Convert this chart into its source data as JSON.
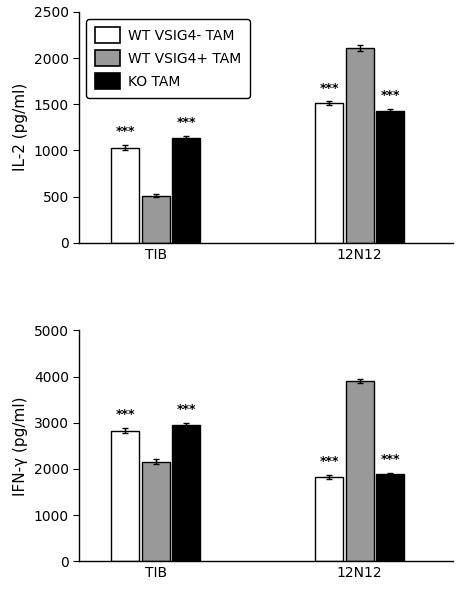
{
  "top_chart": {
    "ylabel": "IL-2 (pg/ml)",
    "ylim": [
      0,
      2500
    ],
    "yticks": [
      0,
      500,
      1000,
      1500,
      2000,
      2500
    ],
    "groups": [
      "TIB",
      "12N12"
    ],
    "bar_keys": [
      "WT VSIG4- TAM",
      "WT VSIG4+ TAM",
      "KO TAM"
    ],
    "bars": {
      "WT VSIG4- TAM": {
        "values": [
          1030,
          1510
        ],
        "color": "#ffffff",
        "edgecolor": "#000000"
      },
      "WT VSIG4+ TAM": {
        "values": [
          510,
          2110
        ],
        "color": "#999999",
        "edgecolor": "#000000"
      },
      "KO TAM": {
        "values": [
          1130,
          1430
        ],
        "color": "#000000",
        "edgecolor": "#000000"
      }
    },
    "errors": {
      "WT VSIG4- TAM": [
        25,
        20
      ],
      "WT VSIG4+ TAM": [
        15,
        28
      ],
      "KO TAM": [
        22,
        22
      ]
    },
    "stars": {
      "TIB": {
        "WT VSIG4- TAM": "***",
        "WT VSIG4+ TAM": null,
        "KO TAM": "***"
      },
      "12N12": {
        "WT VSIG4- TAM": "***",
        "WT VSIG4+ TAM": null,
        "KO TAM": "***"
      }
    }
  },
  "bottom_chart": {
    "ylabel": "IFN-γ (pg/ml)",
    "ylim": [
      0,
      5000
    ],
    "yticks": [
      0,
      1000,
      2000,
      3000,
      4000,
      5000
    ],
    "groups": [
      "TIB",
      "12N12"
    ],
    "bar_keys": [
      "WT VSIG4- TAM",
      "WT VSIG4+ TAM",
      "KO TAM"
    ],
    "bars": {
      "WT VSIG4- TAM": {
        "values": [
          2830,
          1820
        ],
        "color": "#ffffff",
        "edgecolor": "#000000"
      },
      "WT VSIG4+ TAM": {
        "values": [
          2150,
          3900
        ],
        "color": "#999999",
        "edgecolor": "#000000"
      },
      "KO TAM": {
        "values": [
          2940,
          1880
        ],
        "color": "#000000",
        "edgecolor": "#000000"
      }
    },
    "errors": {
      "WT VSIG4- TAM": [
        55,
        45
      ],
      "WT VSIG4+ TAM": [
        55,
        50
      ],
      "KO TAM": [
        45,
        40
      ]
    },
    "stars": {
      "TIB": {
        "WT VSIG4- TAM": "***",
        "WT VSIG4+ TAM": null,
        "KO TAM": "***"
      },
      "12N12": {
        "WT VSIG4- TAM": "***",
        "WT VSIG4+ TAM": null,
        "KO TAM": "***"
      }
    }
  },
  "legend": {
    "labels": [
      "WT VSIG4- TAM",
      "WT VSIG4+ TAM",
      "KO TAM"
    ],
    "colors": [
      "#ffffff",
      "#999999",
      "#000000"
    ],
    "edgecolors": [
      "#000000",
      "#000000",
      "#000000"
    ]
  },
  "bar_width": 0.18,
  "group_centers": [
    1.0,
    2.2
  ],
  "xlim": [
    0.55,
    2.75
  ],
  "fontsize": 11,
  "tick_fontsize": 10,
  "star_fontsize": 9,
  "figsize": [
    4.67,
    5.97
  ],
  "dpi": 100
}
